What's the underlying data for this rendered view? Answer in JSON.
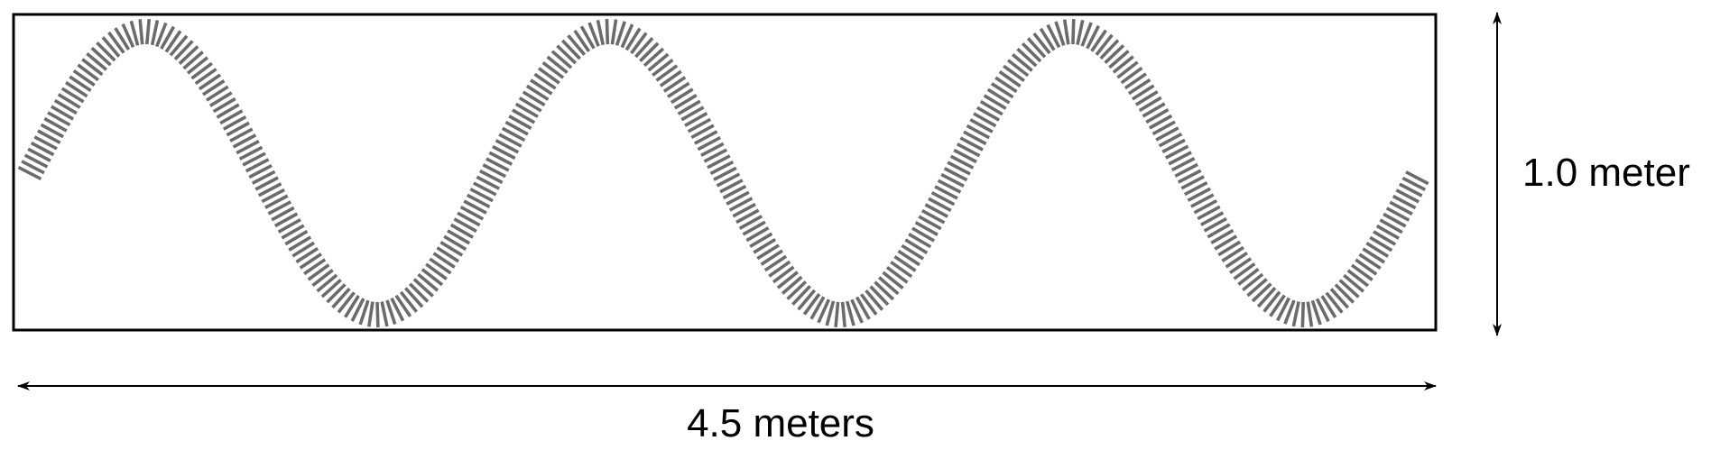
{
  "diagram": {
    "width_label": "4.5 meters",
    "height_label": "1.0 meter",
    "wave_cycles": 3,
    "colors": {
      "frame": "#000000",
      "wave": "#6b6b6b",
      "arrow": "#000000",
      "background": "#ffffff"
    }
  }
}
